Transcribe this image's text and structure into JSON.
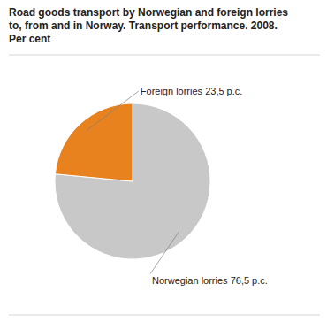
{
  "chart_data": {
    "type": "pie",
    "title": "Road goods transport by Norwegian and foreign lorries\nto, from and in Norway. Transport performance. 2008.\nPer cent",
    "values": [
      76.5,
      23.5
    ],
    "value_labels": [
      "Norwegian lorries 76,5 p.c.",
      "Foreign lorries 23,5 p.c."
    ],
    "data_labels": true,
    "colors": [
      "#c8c8c8",
      "#e8821e"
    ]
  }
}
